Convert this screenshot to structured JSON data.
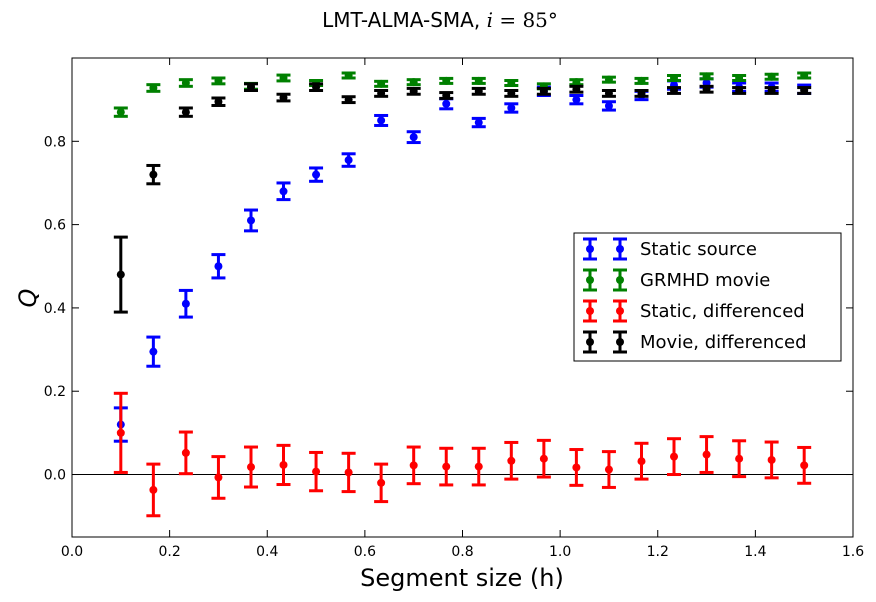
{
  "chart_data": {
    "type": "scatter",
    "title": "LMT-ALMA-SMA, i = 85°",
    "title_parts": {
      "prefix": "LMT-ALMA-SMA, ",
      "var": "i",
      "eq": " = 85°"
    },
    "xlabel": "Segment size (h)",
    "ylabel": "Q",
    "xlim": [
      0.0,
      1.6
    ],
    "ylim": [
      -0.15,
      1.0
    ],
    "xticks": [
      0.0,
      0.2,
      0.4,
      0.6,
      0.8,
      1.0,
      1.2,
      1.4,
      1.6
    ],
    "xtick_labels": [
      "0.0",
      "0.2",
      "0.4",
      "0.6",
      "0.8",
      "1.0",
      "1.2",
      "1.4",
      "1.6"
    ],
    "yticks": [
      0.0,
      0.2,
      0.4,
      0.6,
      0.8
    ],
    "ytick_labels": [
      "0.0",
      "0.2",
      "0.4",
      "0.6",
      "0.8"
    ],
    "reference_line_y": 0.0,
    "legend_position": "center-right",
    "x": [
      0.1,
      0.1667,
      0.2333,
      0.3,
      0.3667,
      0.4333,
      0.5,
      0.5667,
      0.6333,
      0.7,
      0.7667,
      0.8333,
      0.9,
      0.9667,
      1.0333,
      1.1,
      1.1667,
      1.2333,
      1.3,
      1.3667,
      1.4333,
      1.5
    ],
    "series": [
      {
        "name": "Static source",
        "color": "#0000ff",
        "y": [
          0.12,
          0.295,
          0.41,
          0.5,
          0.61,
          0.68,
          0.72,
          0.755,
          0.85,
          0.81,
          0.89,
          0.845,
          0.88,
          0.92,
          0.9,
          0.885,
          0.91,
          0.935,
          0.94,
          0.93,
          0.93,
          0.925
        ],
        "err": [
          0.04,
          0.035,
          0.032,
          0.028,
          0.025,
          0.02,
          0.016,
          0.015,
          0.012,
          0.013,
          0.012,
          0.01,
          0.01,
          0.01,
          0.01,
          0.01,
          0.01,
          0.01,
          0.01,
          0.01,
          0.01,
          0.01
        ]
      },
      {
        "name": "GRMHD movie",
        "color": "#008000",
        "y": [
          0.87,
          0.928,
          0.94,
          0.945,
          0.932,
          0.952,
          0.94,
          0.958,
          0.938,
          0.942,
          0.945,
          0.945,
          0.94,
          0.932,
          0.942,
          0.948,
          0.945,
          0.952,
          0.956,
          0.952,
          0.955,
          0.958
        ],
        "err": [
          0.01,
          0.008,
          0.008,
          0.007,
          0.007,
          0.007,
          0.006,
          0.006,
          0.006,
          0.006,
          0.006,
          0.006,
          0.006,
          0.006,
          0.006,
          0.006,
          0.006,
          0.006,
          0.006,
          0.006,
          0.006,
          0.006
        ]
      },
      {
        "name": "Static, differenced",
        "color": "#ff0000",
        "y": [
          0.1,
          -0.037,
          0.052,
          -0.007,
          0.018,
          0.023,
          0.007,
          0.005,
          -0.02,
          0.022,
          0.019,
          0.019,
          0.033,
          0.038,
          0.017,
          0.012,
          0.032,
          0.043,
          0.048,
          0.038,
          0.035,
          0.022
        ],
        "err": [
          0.095,
          0.062,
          0.05,
          0.05,
          0.048,
          0.047,
          0.046,
          0.046,
          0.045,
          0.044,
          0.044,
          0.044,
          0.044,
          0.044,
          0.043,
          0.043,
          0.043,
          0.043,
          0.043,
          0.043,
          0.043,
          0.043
        ]
      },
      {
        "name": "Movie, differenced",
        "color": "#000000",
        "y": [
          0.48,
          0.72,
          0.87,
          0.895,
          0.93,
          0.905,
          0.93,
          0.9,
          0.915,
          0.92,
          0.91,
          0.92,
          0.915,
          0.92,
          0.925,
          0.915,
          0.915,
          0.922,
          0.925,
          0.922,
          0.922,
          0.922
        ],
        "err": [
          0.09,
          0.022,
          0.01,
          0.009,
          0.008,
          0.008,
          0.008,
          0.007,
          0.007,
          0.007,
          0.007,
          0.007,
          0.007,
          0.007,
          0.007,
          0.007,
          0.007,
          0.007,
          0.007,
          0.007,
          0.007,
          0.007
        ]
      }
    ]
  }
}
